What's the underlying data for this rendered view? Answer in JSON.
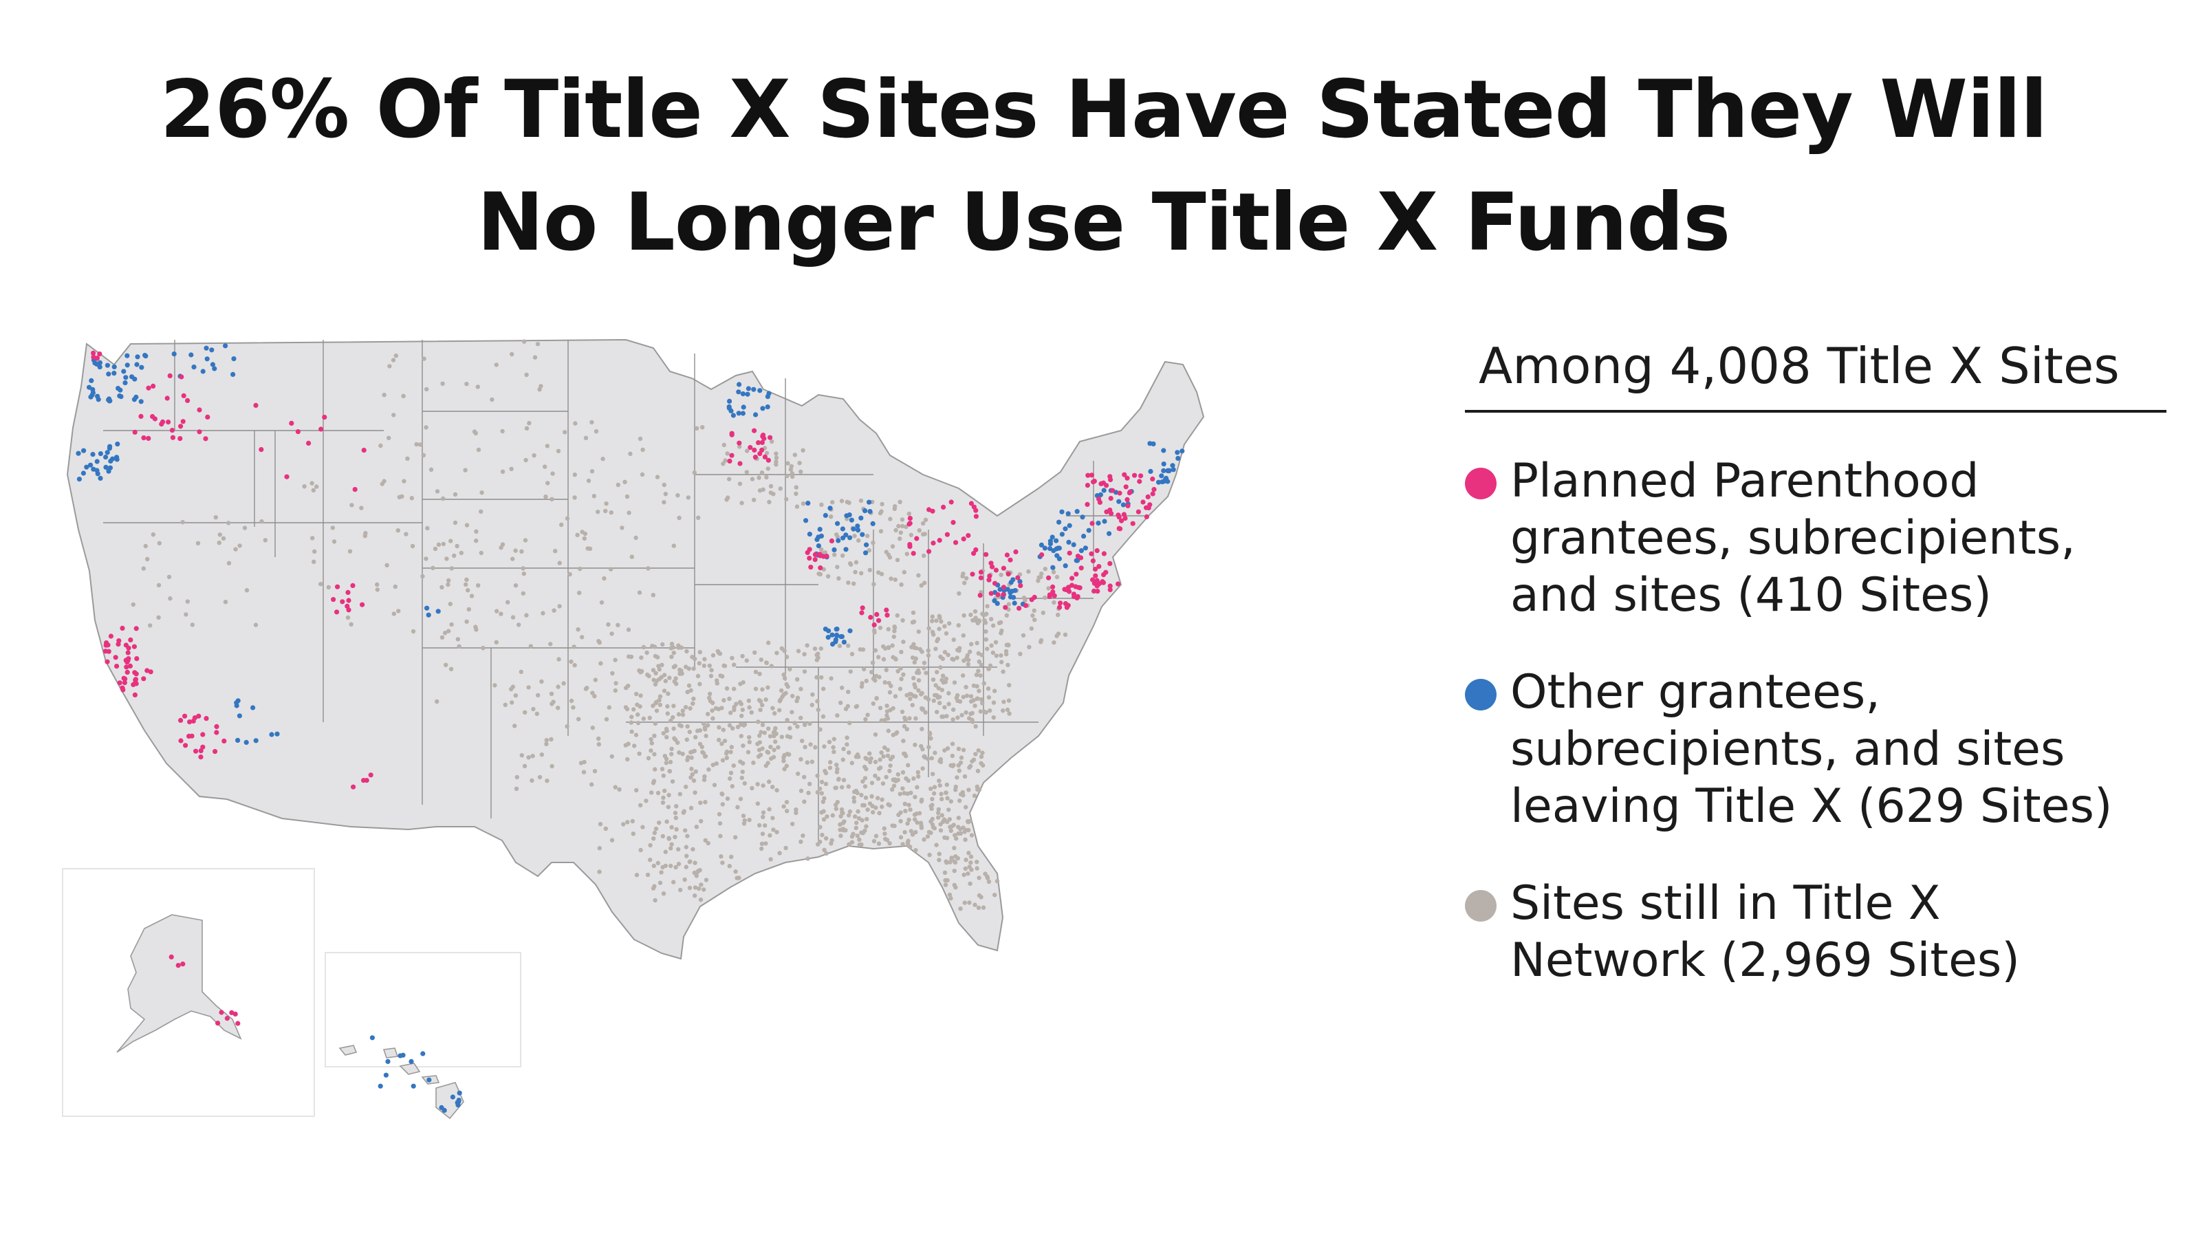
{
  "title": {
    "line1": "26% Of Title X Sites Have Stated They Will",
    "line2": "No Longer Use Title X Funds"
  },
  "colors": {
    "planned_parenthood": "#e8317f",
    "other_leaving": "#3476c1",
    "still_in_network": "#b8b0aa",
    "land": "#e3e3e5",
    "borders": "#8e8e8e"
  },
  "legend": {
    "header": "Among 4,008 Title X Sites",
    "items": [
      {
        "icon": "pink-circle-icon",
        "label": "Planned Parenthood\ngrantees, subrecipients,\nand sites  (410 Sites)"
      },
      {
        "icon": "blue-circle-icon",
        "label": "Other grantees,\nsubrecipients, and sites\nleaving Title X (629 Sites)"
      },
      {
        "icon": "gray-circle-icon",
        "label": "Sites still in Title X\nNetwork (2,969 Sites)"
      }
    ]
  },
  "map": {
    "region": "United States",
    "insets": [
      "Alaska",
      "Hawaii"
    ]
  }
}
